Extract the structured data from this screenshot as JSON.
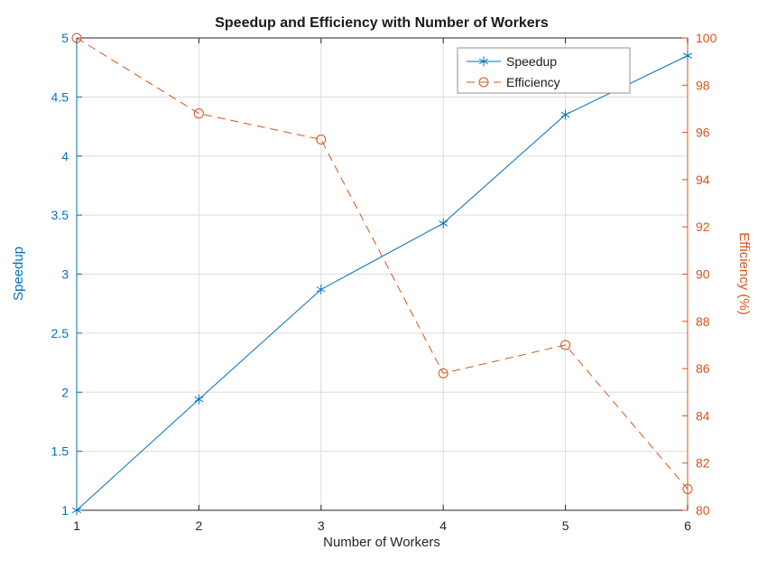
{
  "figure": {
    "background": "#ffffff"
  },
  "chart_data": {
    "type": "line",
    "title": "Speedup and Efficiency with Number of Workers",
    "xlabel": "Number of Workers",
    "x": [
      1,
      2,
      3,
      4,
      5,
      6
    ],
    "xlim": [
      1,
      6
    ],
    "xticks": [
      1,
      2,
      3,
      4,
      5,
      6
    ],
    "grid": true,
    "grid_color": "#dcdcdc",
    "axis_text_color": "#262626",
    "left_axis": {
      "label": "Speedup",
      "color": "#0072BD",
      "lim": [
        1,
        5
      ],
      "ticks": [
        1,
        1.5,
        2,
        2.5,
        3,
        3.5,
        4,
        4.5,
        5
      ]
    },
    "right_axis": {
      "label": "Efficiency (%)",
      "color": "#D95319",
      "lim": [
        80,
        100
      ],
      "ticks": [
        80,
        82,
        84,
        86,
        88,
        90,
        92,
        94,
        96,
        98,
        100
      ]
    },
    "series": [
      {
        "name": "Speedup",
        "axis": "left",
        "color": "#0072BD",
        "line": "solid",
        "marker": "asterisk",
        "values": [
          1.0,
          1.94,
          2.87,
          3.43,
          4.35,
          4.85
        ]
      },
      {
        "name": "Efficiency",
        "axis": "right",
        "color": "#D95319",
        "line": "dashed",
        "marker": "circle",
        "values": [
          100,
          96.8,
          95.7,
          85.8,
          87.0,
          80.9
        ]
      }
    ],
    "legend": {
      "position": "top-right",
      "entries": [
        "Speedup",
        "Efficiency"
      ]
    }
  }
}
